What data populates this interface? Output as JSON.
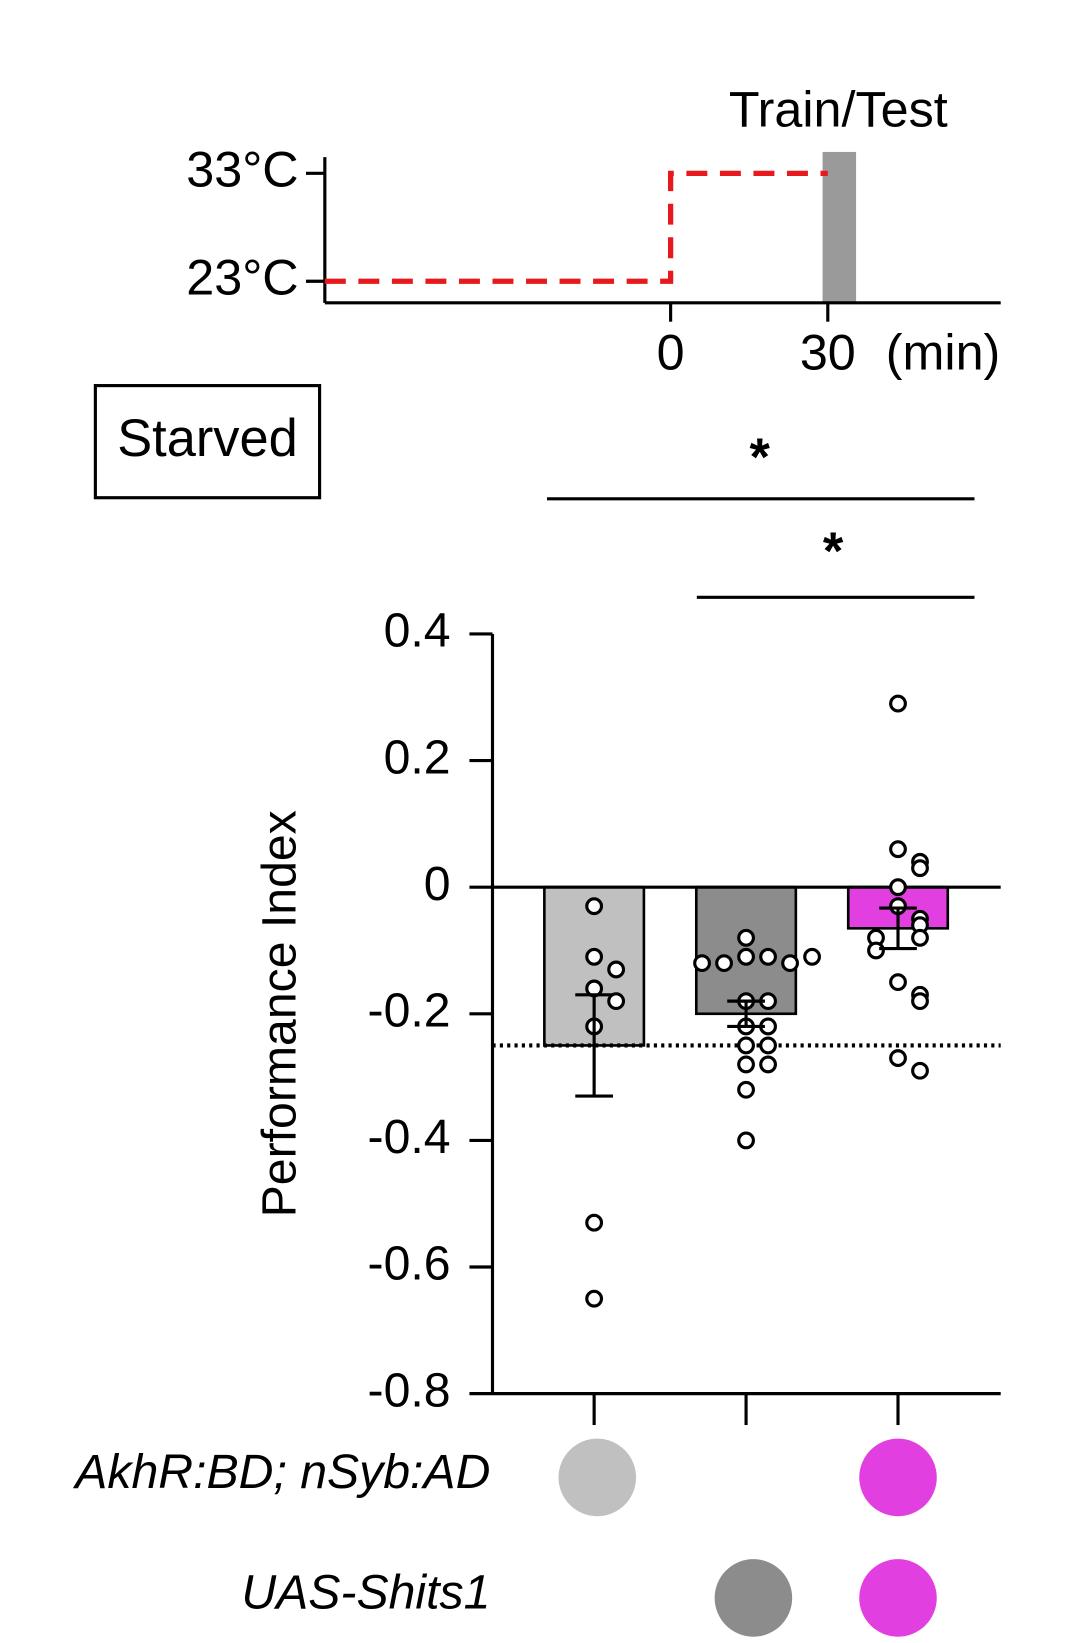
{
  "chart_data": [
    {
      "type": "line",
      "x": [
        -66,
        0,
        0,
        30
      ],
      "values": [
        23,
        23,
        33,
        33
      ],
      "color": "#e8191d",
      "xlim": [
        -66,
        63
      ],
      "ylim": [
        21,
        34.5
      ],
      "xticks": [
        0,
        30
      ],
      "yticks": [
        {
          "value": 23,
          "label": "23°C"
        },
        {
          "value": 33,
          "label": "33°C"
        }
      ],
      "x_label": "(min)",
      "band": {
        "label": "Train/Test",
        "x": [
          29,
          35.4
        ],
        "color": "#9a9a9a"
      }
    },
    {
      "type": "bar",
      "y_label": "Performance Index",
      "box_label": "Starved",
      "categories": [
        null,
        null,
        null
      ],
      "values": [
        -0.25,
        -0.2,
        -0.065
      ],
      "errors": [
        0.08,
        0.02,
        0.032
      ],
      "colors": [
        "#c0c0c0",
        "#8c8c8c",
        "#e23fe0"
      ],
      "points": [
        [
          -0.03,
          -0.11,
          -0.13,
          -0.16,
          -0.18,
          -0.22,
          -0.53,
          -0.65
        ],
        [
          -0.08,
          -0.11,
          -0.11,
          -0.12,
          -0.12,
          -0.12,
          -0.11,
          -0.18,
          -0.18,
          -0.22,
          -0.22,
          -0.25,
          -0.25,
          -0.28,
          -0.28,
          -0.32,
          -0.4
        ],
        [
          0.29,
          0.06,
          0.04,
          0.03,
          0.0,
          -0.03,
          -0.05,
          -0.06,
          -0.08,
          -0.08,
          -0.1,
          -0.15,
          -0.17,
          -0.18,
          -0.27,
          -0.29
        ]
      ],
      "reference_line": -0.25,
      "ylim": [
        -0.8,
        0.4
      ],
      "yticks": [
        -0.8,
        -0.6,
        -0.4,
        -0.2,
        0,
        0.2,
        0.4
      ],
      "significance": [
        "*",
        "*"
      ],
      "genotypes": [
        {
          "label": "AkhR:BD; nSyb:AD",
          "groups": [
            true,
            false,
            true
          ]
        },
        {
          "label": "UAS-Shits1",
          "groups": [
            false,
            true,
            true
          ]
        }
      ]
    }
  ]
}
